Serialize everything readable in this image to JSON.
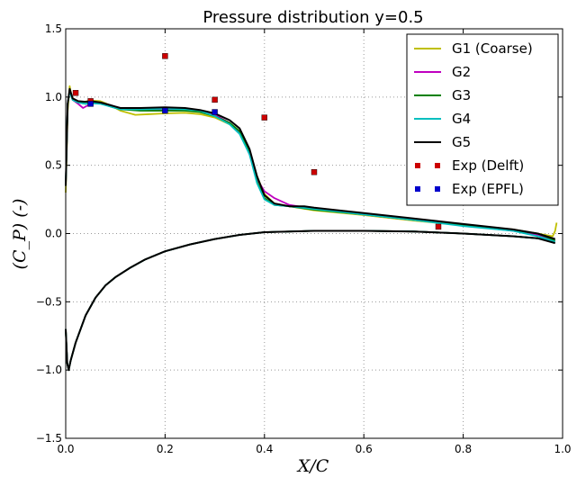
{
  "chart_data": {
    "type": "line",
    "title": "Pressure distribution y=0.5",
    "xlabel": "X/C",
    "ylabel": "(C_P) (-)",
    "xlim": [
      0.0,
      1.0
    ],
    "ylim": [
      -1.5,
      1.5
    ],
    "x_ticks": [
      0.0,
      0.2,
      0.4,
      0.6,
      0.8,
      1.0
    ],
    "y_ticks": [
      -1.5,
      -1.0,
      -0.5,
      0.0,
      0.5,
      1.0,
      1.5
    ],
    "x_tick_labels": [
      "0.0",
      "0.2",
      "0.4",
      "0.6",
      "0.8",
      "1.0"
    ],
    "y_tick_labels": [
      "−1.5",
      "−1.0",
      "−0.5",
      "0.0",
      "0.5",
      "1.0",
      "1.5"
    ],
    "grid": true,
    "legend_position": "top-right",
    "series": [
      {
        "name": "G1 (Coarse)",
        "color": "#bfbf00",
        "upper": [
          [
            0.0,
            0.3
          ],
          [
            0.004,
            0.9
          ],
          [
            0.008,
            1.08
          ],
          [
            0.012,
            1.0
          ],
          [
            0.02,
            0.97
          ],
          [
            0.03,
            0.96
          ],
          [
            0.05,
            0.975
          ],
          [
            0.07,
            0.97
          ],
          [
            0.09,
            0.94
          ],
          [
            0.11,
            0.9
          ],
          [
            0.14,
            0.87
          ],
          [
            0.17,
            0.875
          ],
          [
            0.2,
            0.88
          ],
          [
            0.24,
            0.885
          ],
          [
            0.27,
            0.875
          ],
          [
            0.3,
            0.85
          ],
          [
            0.33,
            0.8
          ],
          [
            0.35,
            0.74
          ],
          [
            0.37,
            0.6
          ],
          [
            0.385,
            0.42
          ],
          [
            0.4,
            0.29
          ],
          [
            0.42,
            0.22
          ],
          [
            0.45,
            0.2
          ],
          [
            0.5,
            0.17
          ],
          [
            0.6,
            0.135
          ],
          [
            0.7,
            0.095
          ],
          [
            0.8,
            0.06
          ],
          [
            0.9,
            0.03
          ],
          [
            0.95,
            0.0
          ],
          [
            0.98,
            -0.02
          ],
          [
            0.985,
            0.02
          ],
          [
            0.988,
            0.08
          ]
        ],
        "lower": [
          [
            0.0,
            -0.7
          ],
          [
            0.003,
            -0.95
          ],
          [
            0.006,
            -1.0
          ],
          [
            0.01,
            -0.93
          ],
          [
            0.02,
            -0.8
          ],
          [
            0.04,
            -0.6
          ],
          [
            0.06,
            -0.47
          ],
          [
            0.08,
            -0.38
          ],
          [
            0.1,
            -0.32
          ],
          [
            0.13,
            -0.25
          ],
          [
            0.16,
            -0.19
          ],
          [
            0.2,
            -0.13
          ],
          [
            0.25,
            -0.08
          ],
          [
            0.3,
            -0.04
          ],
          [
            0.35,
            -0.01
          ],
          [
            0.4,
            0.01
          ],
          [
            0.5,
            0.02
          ],
          [
            0.6,
            0.02
          ],
          [
            0.7,
            0.015
          ],
          [
            0.8,
            0.0
          ],
          [
            0.9,
            -0.02
          ],
          [
            0.95,
            -0.035
          ],
          [
            0.985,
            -0.06
          ]
        ]
      },
      {
        "name": "G2",
        "color": "#bf00bf",
        "upper": [
          [
            0.0,
            0.35
          ],
          [
            0.004,
            0.95
          ],
          [
            0.008,
            1.05
          ],
          [
            0.014,
            0.98
          ],
          [
            0.025,
            0.95
          ],
          [
            0.035,
            0.92
          ],
          [
            0.05,
            0.95
          ],
          [
            0.07,
            0.96
          ],
          [
            0.09,
            0.94
          ],
          [
            0.11,
            0.92
          ],
          [
            0.15,
            0.91
          ],
          [
            0.2,
            0.91
          ],
          [
            0.24,
            0.91
          ],
          [
            0.27,
            0.9
          ],
          [
            0.3,
            0.87
          ],
          [
            0.33,
            0.81
          ],
          [
            0.35,
            0.74
          ],
          [
            0.37,
            0.58
          ],
          [
            0.385,
            0.4
          ],
          [
            0.4,
            0.31
          ],
          [
            0.42,
            0.26
          ],
          [
            0.45,
            0.21
          ],
          [
            0.5,
            0.18
          ],
          [
            0.6,
            0.14
          ],
          [
            0.7,
            0.1
          ],
          [
            0.8,
            0.06
          ],
          [
            0.9,
            0.02
          ],
          [
            0.95,
            -0.01
          ],
          [
            0.985,
            -0.05
          ]
        ],
        "lower": [
          [
            0.0,
            -0.7
          ],
          [
            0.003,
            -0.95
          ],
          [
            0.006,
            -1.0
          ],
          [
            0.01,
            -0.93
          ],
          [
            0.02,
            -0.8
          ],
          [
            0.04,
            -0.6
          ],
          [
            0.06,
            -0.47
          ],
          [
            0.08,
            -0.38
          ],
          [
            0.1,
            -0.32
          ],
          [
            0.13,
            -0.25
          ],
          [
            0.16,
            -0.19
          ],
          [
            0.2,
            -0.13
          ],
          [
            0.25,
            -0.08
          ],
          [
            0.3,
            -0.04
          ],
          [
            0.35,
            -0.01
          ],
          [
            0.4,
            0.01
          ],
          [
            0.5,
            0.02
          ],
          [
            0.6,
            0.02
          ],
          [
            0.7,
            0.015
          ],
          [
            0.8,
            0.0
          ],
          [
            0.9,
            -0.02
          ],
          [
            0.95,
            -0.035
          ],
          [
            0.985,
            -0.06
          ]
        ]
      },
      {
        "name": "G3",
        "color": "#008000",
        "upper": [
          [
            0.0,
            0.35
          ],
          [
            0.004,
            0.95
          ],
          [
            0.008,
            1.05
          ],
          [
            0.014,
            0.98
          ],
          [
            0.025,
            0.96
          ],
          [
            0.04,
            0.95
          ],
          [
            0.05,
            0.96
          ],
          [
            0.07,
            0.955
          ],
          [
            0.09,
            0.93
          ],
          [
            0.11,
            0.91
          ],
          [
            0.15,
            0.9
          ],
          [
            0.2,
            0.9
          ],
          [
            0.24,
            0.9
          ],
          [
            0.27,
            0.89
          ],
          [
            0.3,
            0.86
          ],
          [
            0.33,
            0.81
          ],
          [
            0.35,
            0.75
          ],
          [
            0.37,
            0.6
          ],
          [
            0.385,
            0.38
          ],
          [
            0.4,
            0.26
          ],
          [
            0.42,
            0.21
          ],
          [
            0.45,
            0.2
          ],
          [
            0.5,
            0.175
          ],
          [
            0.6,
            0.14
          ],
          [
            0.7,
            0.1
          ],
          [
            0.8,
            0.06
          ],
          [
            0.9,
            0.025
          ],
          [
            0.95,
            0.0
          ],
          [
            0.985,
            -0.05
          ]
        ],
        "lower": [
          [
            0.0,
            -0.7
          ],
          [
            0.003,
            -0.95
          ],
          [
            0.006,
            -1.0
          ],
          [
            0.01,
            -0.93
          ],
          [
            0.02,
            -0.8
          ],
          [
            0.04,
            -0.6
          ],
          [
            0.06,
            -0.47
          ],
          [
            0.08,
            -0.38
          ],
          [
            0.1,
            -0.32
          ],
          [
            0.13,
            -0.25
          ],
          [
            0.16,
            -0.19
          ],
          [
            0.2,
            -0.13
          ],
          [
            0.25,
            -0.08
          ],
          [
            0.3,
            -0.04
          ],
          [
            0.35,
            -0.01
          ],
          [
            0.4,
            0.01
          ],
          [
            0.5,
            0.02
          ],
          [
            0.6,
            0.02
          ],
          [
            0.7,
            0.015
          ],
          [
            0.8,
            0.0
          ],
          [
            0.9,
            -0.02
          ],
          [
            0.95,
            -0.035
          ],
          [
            0.985,
            -0.06
          ]
        ]
      },
      {
        "name": "G4",
        "color": "#00bfbf",
        "upper": [
          [
            0.0,
            0.35
          ],
          [
            0.004,
            0.95
          ],
          [
            0.008,
            1.04
          ],
          [
            0.014,
            0.98
          ],
          [
            0.025,
            0.96
          ],
          [
            0.04,
            0.95
          ],
          [
            0.05,
            0.955
          ],
          [
            0.07,
            0.95
          ],
          [
            0.09,
            0.93
          ],
          [
            0.11,
            0.91
          ],
          [
            0.15,
            0.91
          ],
          [
            0.2,
            0.915
          ],
          [
            0.24,
            0.91
          ],
          [
            0.27,
            0.9
          ],
          [
            0.3,
            0.86
          ],
          [
            0.33,
            0.8
          ],
          [
            0.35,
            0.73
          ],
          [
            0.37,
            0.58
          ],
          [
            0.385,
            0.37
          ],
          [
            0.4,
            0.25
          ],
          [
            0.42,
            0.21
          ],
          [
            0.45,
            0.2
          ],
          [
            0.5,
            0.18
          ],
          [
            0.6,
            0.14
          ],
          [
            0.7,
            0.1
          ],
          [
            0.8,
            0.055
          ],
          [
            0.9,
            0.02
          ],
          [
            0.95,
            -0.02
          ],
          [
            0.985,
            -0.06
          ]
        ],
        "lower": [
          [
            0.0,
            -0.7
          ],
          [
            0.003,
            -0.95
          ],
          [
            0.006,
            -1.0
          ],
          [
            0.01,
            -0.93
          ],
          [
            0.02,
            -0.8
          ],
          [
            0.04,
            -0.6
          ],
          [
            0.06,
            -0.47
          ],
          [
            0.08,
            -0.38
          ],
          [
            0.1,
            -0.32
          ],
          [
            0.13,
            -0.25
          ],
          [
            0.16,
            -0.19
          ],
          [
            0.2,
            -0.13
          ],
          [
            0.25,
            -0.08
          ],
          [
            0.3,
            -0.04
          ],
          [
            0.35,
            -0.01
          ],
          [
            0.4,
            0.01
          ],
          [
            0.5,
            0.02
          ],
          [
            0.6,
            0.02
          ],
          [
            0.7,
            0.015
          ],
          [
            0.8,
            0.0
          ],
          [
            0.9,
            -0.02
          ],
          [
            0.95,
            -0.035
          ],
          [
            0.985,
            -0.06
          ]
        ]
      },
      {
        "name": "G5",
        "color": "#000000",
        "upper": [
          [
            0.0,
            0.35
          ],
          [
            0.004,
            0.95
          ],
          [
            0.008,
            1.06
          ],
          [
            0.014,
            0.99
          ],
          [
            0.025,
            0.97
          ],
          [
            0.04,
            0.965
          ],
          [
            0.05,
            0.97
          ],
          [
            0.07,
            0.96
          ],
          [
            0.09,
            0.94
          ],
          [
            0.11,
            0.92
          ],
          [
            0.15,
            0.92
          ],
          [
            0.2,
            0.925
          ],
          [
            0.24,
            0.92
          ],
          [
            0.27,
            0.905
          ],
          [
            0.3,
            0.88
          ],
          [
            0.33,
            0.83
          ],
          [
            0.35,
            0.77
          ],
          [
            0.37,
            0.62
          ],
          [
            0.385,
            0.42
          ],
          [
            0.4,
            0.28
          ],
          [
            0.42,
            0.22
          ],
          [
            0.45,
            0.2
          ],
          [
            0.48,
            0.2
          ],
          [
            0.5,
            0.19
          ],
          [
            0.6,
            0.15
          ],
          [
            0.7,
            0.11
          ],
          [
            0.8,
            0.07
          ],
          [
            0.9,
            0.03
          ],
          [
            0.95,
            0.0
          ],
          [
            0.985,
            -0.04
          ]
        ],
        "lower": [
          [
            0.0,
            -0.7
          ],
          [
            0.003,
            -0.95
          ],
          [
            0.006,
            -1.0
          ],
          [
            0.01,
            -0.93
          ],
          [
            0.02,
            -0.8
          ],
          [
            0.04,
            -0.6
          ],
          [
            0.06,
            -0.47
          ],
          [
            0.08,
            -0.38
          ],
          [
            0.1,
            -0.32
          ],
          [
            0.13,
            -0.25
          ],
          [
            0.16,
            -0.19
          ],
          [
            0.2,
            -0.13
          ],
          [
            0.25,
            -0.08
          ],
          [
            0.3,
            -0.04
          ],
          [
            0.35,
            -0.01
          ],
          [
            0.4,
            0.01
          ],
          [
            0.5,
            0.02
          ],
          [
            0.6,
            0.02
          ],
          [
            0.7,
            0.015
          ],
          [
            0.8,
            0.0
          ],
          [
            0.9,
            -0.02
          ],
          [
            0.95,
            -0.035
          ],
          [
            0.985,
            -0.07
          ]
        ]
      }
    ],
    "markers": [
      {
        "name": "Exp (Delft)",
        "color": "#cc0000",
        "points": [
          [
            0.02,
            1.03
          ],
          [
            0.05,
            0.97
          ],
          [
            0.2,
            1.3
          ],
          [
            0.3,
            0.98
          ],
          [
            0.4,
            0.85
          ],
          [
            0.5,
            0.45
          ],
          [
            0.75,
            0.05
          ]
        ]
      },
      {
        "name": "Exp (EPFL)",
        "color": "#0000cc",
        "points": [
          [
            0.05,
            0.95
          ],
          [
            0.2,
            0.9
          ],
          [
            0.3,
            0.89
          ]
        ]
      }
    ]
  }
}
